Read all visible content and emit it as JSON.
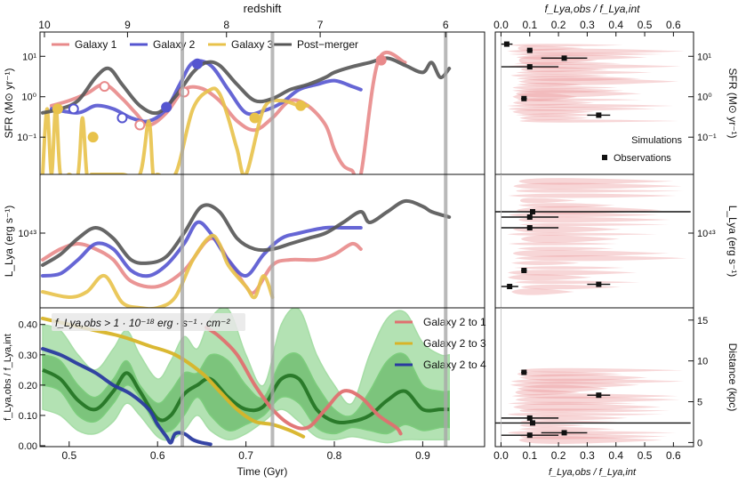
{
  "figure": {
    "top_axis_title": "redshift",
    "top_ticks": [
      "10",
      "9",
      "8",
      "7",
      "6"
    ],
    "bottom_axis_title": "Time (Gyr)",
    "bottom_ticks": [
      "0.5",
      "0.6",
      "0.7",
      "0.8",
      "0.9"
    ],
    "right_top_title": "f_Lya,obs / f_Lya,int",
    "right_bottom_title": "f_Lya,obs / f_Lya,int",
    "right_ticks": [
      "0.0",
      "0.1",
      "0.2",
      "0.3",
      "0.4",
      "0.5",
      "0.6"
    ],
    "vertical_markers_gyr": [
      0.628,
      0.73,
      0.926
    ]
  },
  "chart_data": [
    {
      "id": "sfr",
      "type": "line",
      "ylabel": "SFR (M⊙ yr⁻¹)",
      "y_scale": "log",
      "ylim": [
        0.01,
        40
      ],
      "y_ticks": [
        "10¹",
        "10⁰",
        "10⁻¹"
      ],
      "xlim": [
        0.467,
        0.97
      ],
      "legend": {
        "placement": "top",
        "entries": [
          {
            "label": "Galaxy 1",
            "color": "#e8898a"
          },
          {
            "label": "Galaxy 2",
            "color": "#5555d0"
          },
          {
            "label": "Galaxy 3",
            "color": "#e8c24a"
          },
          {
            "label": "Post−merger",
            "color": "#555555"
          }
        ]
      },
      "series": [
        {
          "name": "Galaxy 1",
          "color": "#e8898a",
          "x": [
            0.48,
            0.5,
            0.52,
            0.54,
            0.56,
            0.575,
            0.59,
            0.61,
            0.63,
            0.65,
            0.67,
            0.69,
            0.71,
            0.73,
            0.75,
            0.77,
            0.79,
            0.8,
            0.81,
            0.82,
            0.83,
            0.85,
            0.88
          ],
          "y": [
            0.6,
            0.8,
            1.2,
            2.0,
            0.9,
            0.4,
            0.2,
            0.4,
            1.5,
            1.6,
            0.8,
            0.25,
            0.15,
            0.3,
            0.8,
            0.6,
            0.2,
            0.05,
            0.02,
            0.015,
            0.012,
            8,
            7
          ]
        },
        {
          "name": "Galaxy 2",
          "color": "#5555d0",
          "x": [
            0.48,
            0.51,
            0.53,
            0.55,
            0.57,
            0.59,
            0.61,
            0.625,
            0.64,
            0.66,
            0.68,
            0.7,
            0.72,
            0.74,
            0.76,
            0.78,
            0.8,
            0.82,
            0.83
          ],
          "y": [
            0.5,
            0.4,
            0.6,
            0.5,
            0.3,
            0.25,
            0.5,
            2.0,
            7.0,
            6.0,
            1.5,
            0.4,
            0.45,
            0.7,
            1.5,
            2.0,
            2.5,
            1.8,
            1.5
          ]
        },
        {
          "name": "Galaxy 3",
          "color": "#e8c24a",
          "x": [
            0.47,
            0.475,
            0.48,
            0.485,
            0.49,
            0.5,
            0.51,
            0.515,
            0.52,
            0.525,
            0.53,
            0.56,
            0.58,
            0.59,
            0.595,
            0.6,
            0.62,
            0.64,
            0.66,
            0.67,
            0.68,
            0.69,
            0.7,
            0.72,
            0.74,
            0.76,
            0.77
          ],
          "y": [
            0.01,
            0.5,
            0.01,
            0.6,
            0.01,
            0.01,
            0.01,
            0.3,
            0.01,
            0.01,
            0.01,
            0.01,
            0.01,
            0.25,
            0.01,
            0.01,
            0.01,
            0.5,
            1.5,
            1.2,
            0.3,
            0.05,
            0.01,
            0.5,
            0.8,
            0.6,
            0.6
          ]
        },
        {
          "name": "Post−merger",
          "color": "#555555",
          "x": [
            0.47,
            0.49,
            0.51,
            0.53,
            0.545,
            0.56,
            0.58,
            0.6,
            0.62,
            0.64,
            0.655,
            0.67,
            0.69,
            0.71,
            0.73,
            0.75,
            0.77,
            0.79,
            0.8,
            0.82,
            0.84,
            0.86,
            0.88,
            0.9,
            0.91,
            0.92,
            0.93
          ],
          "y": [
            0.4,
            0.5,
            0.8,
            3.0,
            5.0,
            2.0,
            0.6,
            0.4,
            1.0,
            4.0,
            7.0,
            6.0,
            2.0,
            0.8,
            0.9,
            1.5,
            2.0,
            3.0,
            4.0,
            5.5,
            7.0,
            9.0,
            6.0,
            4.0,
            7.0,
            3.0,
            5.0
          ]
        }
      ],
      "markers": [
        {
          "series": "Galaxy 1",
          "filled": false,
          "x": [
            0.54,
            0.58,
            0.63
          ],
          "y": [
            1.8,
            0.2,
            1.3
          ]
        },
        {
          "series": "Galaxy 1",
          "filled": true,
          "x": [
            0.853
          ],
          "y": [
            8
          ]
        },
        {
          "series": "Galaxy 2",
          "filled": false,
          "x": [
            0.505,
            0.56
          ],
          "y": [
            0.5,
            0.3
          ]
        },
        {
          "series": "Galaxy 2",
          "filled": true,
          "x": [
            0.61,
            0.645
          ],
          "y": [
            0.55,
            6.5
          ]
        },
        {
          "series": "Galaxy 3",
          "filled": true,
          "x": [
            0.487,
            0.527,
            0.71,
            0.762
          ],
          "y": [
            0.5,
            0.1,
            0.3,
            0.6
          ]
        }
      ]
    },
    {
      "id": "lya",
      "type": "line",
      "ylabel": "L_Lya (erg s⁻¹)",
      "y_scale": "log",
      "y_ticks": [
        "10⁴³"
      ],
      "xlim": [
        0.467,
        0.97
      ],
      "series": [
        {
          "name": "Galaxy 1",
          "color": "#e8898a",
          "x": [
            0.47,
            0.49,
            0.51,
            0.53,
            0.55,
            0.57,
            0.6,
            0.63,
            0.66,
            0.68,
            0.7,
            0.71,
            0.73,
            0.75,
            0.78,
            0.8,
            0.82,
            0.83
          ],
          "y": [
            42.75,
            42.85,
            42.9,
            42.85,
            42.75,
            42.55,
            42.5,
            42.65,
            42.95,
            42.75,
            42.5,
            42.45,
            42.7,
            42.75,
            42.75,
            42.8,
            42.9,
            42.85
          ]
        },
        {
          "name": "Galaxy 2",
          "color": "#5555d0",
          "x": [
            0.47,
            0.49,
            0.51,
            0.53,
            0.55,
            0.57,
            0.59,
            0.61,
            0.63,
            0.645,
            0.66,
            0.68,
            0.7,
            0.72,
            0.74,
            0.76,
            0.79,
            0.81,
            0.83
          ],
          "y": [
            42.6,
            42.62,
            42.75,
            42.9,
            42.85,
            42.65,
            42.6,
            42.7,
            42.9,
            43.1,
            43.0,
            42.75,
            42.6,
            42.8,
            42.95,
            43.0,
            43.05,
            43.05,
            43.05
          ]
        },
        {
          "name": "Galaxy 3",
          "color": "#e8c24a",
          "x": [
            0.47,
            0.5,
            0.52,
            0.54,
            0.56,
            0.58,
            0.6,
            0.62,
            0.64,
            0.66,
            0.67,
            0.68,
            0.7,
            0.71,
            0.72,
            0.73
          ],
          "y": [
            42.45,
            42.4,
            42.45,
            42.6,
            42.35,
            42.3,
            42.3,
            42.4,
            42.75,
            42.97,
            42.9,
            42.7,
            42.5,
            42.4,
            42.6,
            42.4
          ]
        },
        {
          "name": "Post−merger",
          "color": "#555555",
          "x": [
            0.47,
            0.49,
            0.51,
            0.53,
            0.55,
            0.57,
            0.59,
            0.61,
            0.63,
            0.65,
            0.67,
            0.69,
            0.71,
            0.73,
            0.75,
            0.77,
            0.79,
            0.81,
            0.83,
            0.84,
            0.86,
            0.88,
            0.9,
            0.91,
            0.93
          ],
          "y": [
            42.7,
            42.8,
            42.95,
            43.05,
            42.95,
            42.75,
            42.72,
            42.78,
            43.0,
            43.25,
            43.2,
            42.95,
            42.85,
            42.85,
            42.9,
            42.95,
            43.0,
            43.1,
            43.2,
            43.1,
            43.2,
            43.3,
            43.25,
            43.2,
            43.15
          ]
        }
      ]
    },
    {
      "id": "escape",
      "type": "line",
      "ylabel": "f_Lya,obs / f_Lya,int",
      "ylim": [
        0,
        0.45
      ],
      "y_ticks": [
        "0.00",
        "0.10",
        "0.20",
        "0.30",
        "0.40"
      ],
      "xlim": [
        0.467,
        0.97
      ],
      "annotation": "f_Lya,obs > 1 · 10⁻¹⁸ erg · s⁻¹ · cm⁻²",
      "legend": {
        "placement": "top-right",
        "entries": [
          {
            "label": "Galaxy 2 to 1",
            "color": "#e07070"
          },
          {
            "label": "Galaxy 2 to 3",
            "color": "#d8b428"
          },
          {
            "label": "Galaxy 2 to 4",
            "color": "#2a3aa0"
          }
        ]
      },
      "band_x": [
        0.47,
        0.49,
        0.51,
        0.53,
        0.55,
        0.565,
        0.58,
        0.6,
        0.615,
        0.63,
        0.645,
        0.66,
        0.68,
        0.7,
        0.72,
        0.74,
        0.76,
        0.78,
        0.8,
        0.82,
        0.84,
        0.86,
        0.88,
        0.9,
        0.92,
        0.93
      ],
      "band_outer_lo": [
        0.12,
        0.1,
        0.05,
        0.04,
        0.08,
        0.14,
        0.1,
        0.03,
        0.02,
        0.05,
        0.1,
        0.05,
        0.02,
        0.04,
        0.08,
        0.12,
        0.08,
        0.03,
        0.02,
        0.03,
        0.02,
        0.01,
        0.02,
        0.02,
        0.02,
        0.02
      ],
      "band_outer_hi": [
        0.4,
        0.38,
        0.3,
        0.25,
        0.32,
        0.38,
        0.3,
        0.22,
        0.28,
        0.36,
        0.32,
        0.42,
        0.45,
        0.3,
        0.2,
        0.4,
        0.45,
        0.3,
        0.2,
        0.14,
        0.3,
        0.42,
        0.44,
        0.34,
        0.3,
        0.3
      ],
      "band_inner_lo": [
        0.2,
        0.18,
        0.1,
        0.08,
        0.14,
        0.2,
        0.16,
        0.06,
        0.05,
        0.1,
        0.16,
        0.1,
        0.05,
        0.07,
        0.1,
        0.16,
        0.14,
        0.06,
        0.04,
        0.06,
        0.05,
        0.04,
        0.07,
        0.05,
        0.06,
        0.06
      ],
      "band_inner_hi": [
        0.3,
        0.28,
        0.2,
        0.16,
        0.22,
        0.28,
        0.2,
        0.14,
        0.18,
        0.24,
        0.24,
        0.3,
        0.28,
        0.2,
        0.16,
        0.28,
        0.3,
        0.2,
        0.12,
        0.1,
        0.18,
        0.28,
        0.3,
        0.2,
        0.18,
        0.18
      ],
      "band_median": [
        0.25,
        0.22,
        0.15,
        0.12,
        0.18,
        0.24,
        0.18,
        0.09,
        0.1,
        0.17,
        0.2,
        0.22,
        0.16,
        0.12,
        0.13,
        0.22,
        0.22,
        0.12,
        0.08,
        0.08,
        0.1,
        0.15,
        0.18,
        0.12,
        0.12,
        0.12
      ],
      "series": [
        {
          "name": "Galaxy 2 to 1",
          "color": "#e07070",
          "x": [
            0.655,
            0.67,
            0.69,
            0.71,
            0.73,
            0.75,
            0.77,
            0.79,
            0.81,
            0.83,
            0.85,
            0.87,
            0.875
          ],
          "y": [
            0.39,
            0.36,
            0.3,
            0.2,
            0.12,
            0.07,
            0.06,
            0.12,
            0.18,
            0.16,
            0.1,
            0.06,
            0.04
          ]
        },
        {
          "name": "Galaxy 2 to 3",
          "color": "#d8b428",
          "x": [
            0.47,
            0.5,
            0.53,
            0.56,
            0.59,
            0.62,
            0.65,
            0.67,
            0.69,
            0.71,
            0.73,
            0.75,
            0.765
          ],
          "y": [
            0.42,
            0.4,
            0.38,
            0.36,
            0.33,
            0.3,
            0.24,
            0.18,
            0.12,
            0.08,
            0.07,
            0.05,
            0.03
          ]
        },
        {
          "name": "Galaxy 2 to 4",
          "color": "#2a3aa0",
          "x": [
            0.47,
            0.49,
            0.51,
            0.53,
            0.55,
            0.57,
            0.59,
            0.6,
            0.61,
            0.615,
            0.62,
            0.63,
            0.64,
            0.65,
            0.66
          ],
          "y": [
            0.32,
            0.3,
            0.27,
            0.24,
            0.2,
            0.17,
            0.12,
            0.07,
            0.03,
            0.01,
            0.04,
            0.04,
            0.02,
            0.01,
            0.005
          ]
        }
      ]
    },
    {
      "id": "obs_sfr",
      "type": "scatter",
      "xlabel_top": "f_Lya,obs / f_Lya,int",
      "ylabel_right": "SFR (M⊙ yr⁻¹)",
      "xlim": [
        -0.02,
        0.67
      ],
      "legend": {
        "placement": "bottom-right",
        "entries": [
          {
            "label": "Simulations",
            "color": "#e88a8d"
          },
          {
            "label": "Observations",
            "color": "#111111"
          }
        ]
      },
      "points": [
        {
          "x": 0.02,
          "xerr": 0.02,
          "y": 20
        },
        {
          "x": 0.1,
          "xerr": 0.01,
          "y": 14
        },
        {
          "x": 0.1,
          "xerr": 0.1,
          "y": 5.5
        },
        {
          "x": 0.22,
          "xerr": 0.08,
          "y": 9
        },
        {
          "x": 0.08,
          "xerr": 0.01,
          "y": 0.9
        },
        {
          "x": 0.34,
          "xerr": 0.04,
          "y": 0.35
        }
      ]
    },
    {
      "id": "obs_lya",
      "type": "scatter",
      "ylabel_right": "L_Lya (erg s⁻¹)",
      "xlim": [
        -0.02,
        0.67
      ],
      "points": [
        {
          "x": 0.11,
          "xerr": 0.55,
          "y": 43.2
        },
        {
          "x": 0.1,
          "xerr": 0.1,
          "y": 43.15
        },
        {
          "x": 0.1,
          "xerr": 0.1,
          "y": 43.05
        },
        {
          "x": 0.08,
          "xerr": 0.01,
          "y": 42.65
        },
        {
          "x": 0.03,
          "xerr": 0.03,
          "y": 42.5
        },
        {
          "x": 0.34,
          "xerr": 0.04,
          "y": 42.52
        }
      ]
    },
    {
      "id": "obs_dist",
      "type": "scatter",
      "xlabel": "f_Lya,obs / f_Lya,int",
      "ylabel_right": "Distance (kpc)",
      "ylim": [
        0,
        16
      ],
      "y_ticks": [
        "0",
        "5",
        "10",
        "15"
      ],
      "xlim": [
        -0.02,
        0.67
      ],
      "points": [
        {
          "x": 0.08,
          "xerr": 0.01,
          "y": 8.6
        },
        {
          "x": 0.34,
          "xerr": 0.04,
          "y": 5.8
        },
        {
          "x": 0.1,
          "xerr": 0.1,
          "y": 3.0
        },
        {
          "x": 0.11,
          "xerr": 0.55,
          "y": 2.4
        },
        {
          "x": 0.22,
          "xerr": 0.08,
          "y": 1.2
        },
        {
          "x": 0.1,
          "xerr": 0.1,
          "y": 0.9
        }
      ]
    }
  ]
}
